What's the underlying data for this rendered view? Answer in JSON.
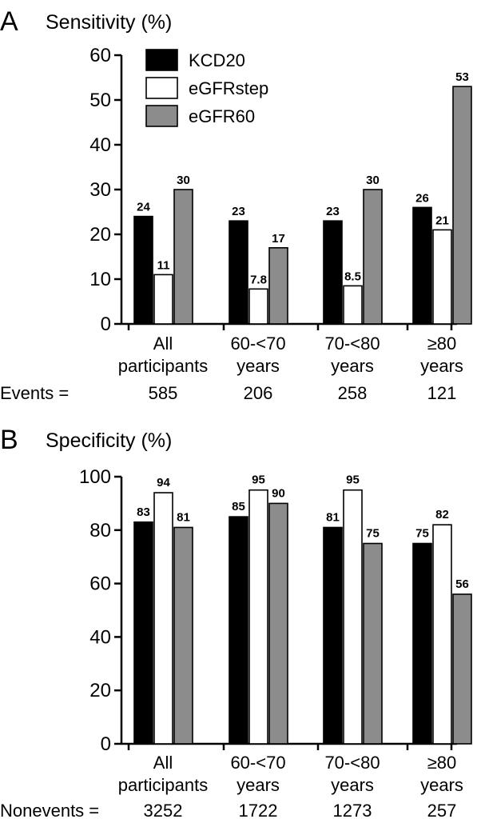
{
  "colors": {
    "KCD20": "#000000",
    "eGFRstep": "#ffffff",
    "eGFR60": "#8c8c8c"
  },
  "legend": [
    {
      "name": "KCD20",
      "swatch": "black"
    },
    {
      "name": "eGFRstep",
      "swatch": "white"
    },
    {
      "name": "eGFR60",
      "swatch": "gray"
    }
  ],
  "chart_data": [
    {
      "type": "bar",
      "panel_letter": "A",
      "title": "Sensitivity (%)",
      "ylim": [
        0,
        60
      ],
      "yticks": [
        "0",
        "10",
        "20",
        "30",
        "40",
        "50",
        "60"
      ],
      "categories": [
        [
          "All",
          "participants"
        ],
        [
          "60-<70",
          "years"
        ],
        [
          "70-<80",
          "years"
        ],
        [
          "≥80",
          "years"
        ]
      ],
      "count_label": "Events =",
      "counts": [
        "585",
        "206",
        "258",
        "121"
      ],
      "series": [
        {
          "name": "KCD20",
          "values": [
            24,
            23,
            23,
            26
          ],
          "labels": [
            "24",
            "23",
            "23",
            "26"
          ]
        },
        {
          "name": "eGFRstep",
          "values": [
            11,
            7.8,
            8.5,
            21
          ],
          "labels": [
            "11",
            "7.8",
            "8.5",
            "21"
          ]
        },
        {
          "name": "eGFR60",
          "values": [
            30,
            17,
            30,
            53
          ],
          "labels": [
            "30",
            "17",
            "30",
            "53"
          ]
        }
      ]
    },
    {
      "type": "bar",
      "panel_letter": "B",
      "title": "Specificity (%)",
      "ylim": [
        0,
        100
      ],
      "yticks": [
        "0",
        "20",
        "40",
        "60",
        "80",
        "100"
      ],
      "categories": [
        [
          "All",
          "participants"
        ],
        [
          "60-<70",
          "years"
        ],
        [
          "70-<80",
          "years"
        ],
        [
          "≥80",
          "years"
        ]
      ],
      "count_label": "Nonevents =",
      "counts": [
        "3252",
        "1722",
        "1273",
        "257"
      ],
      "series": [
        {
          "name": "KCD20",
          "values": [
            83,
            85,
            81,
            75
          ],
          "labels": [
            "83",
            "85",
            "81",
            "75"
          ]
        },
        {
          "name": "eGFRstep",
          "values": [
            94,
            95,
            95,
            82
          ],
          "labels": [
            "94",
            "95",
            "95",
            "82"
          ]
        },
        {
          "name": "eGFR60",
          "values": [
            81,
            90,
            75,
            56
          ],
          "labels": [
            "81",
            "90",
            "75",
            "56"
          ]
        }
      ]
    }
  ]
}
